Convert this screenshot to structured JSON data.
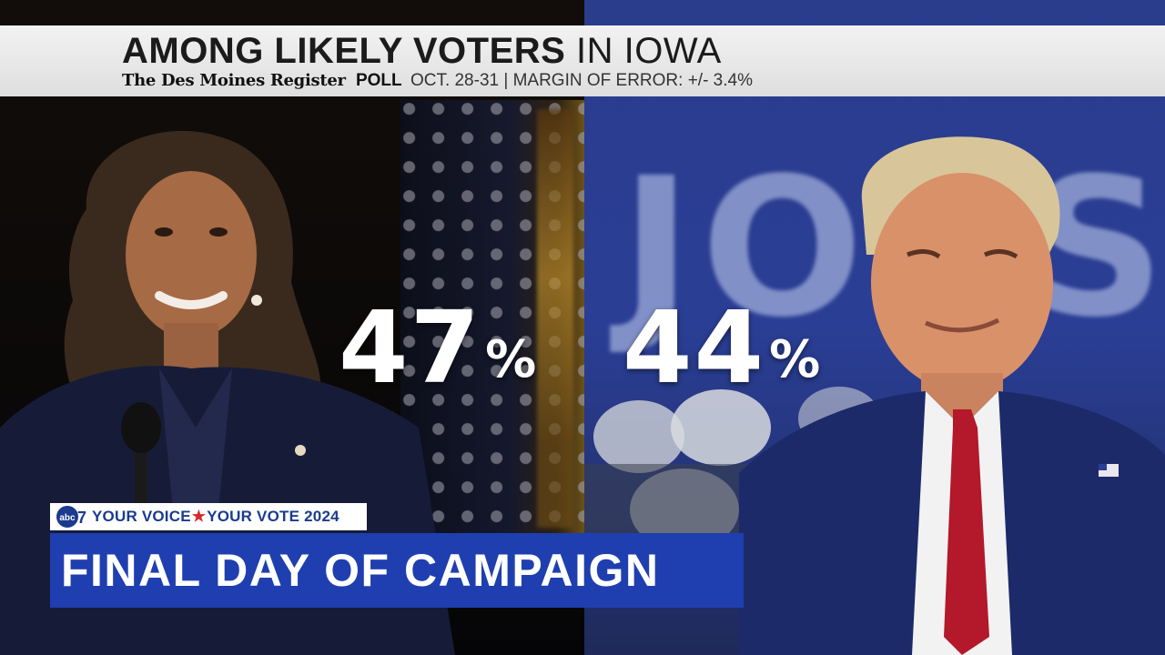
{
  "headline": {
    "bold_text": "AMONG LIKELY VOTERS",
    "light_text": "IN IOWA"
  },
  "subline": {
    "publication": "The Des Moines Register",
    "label": "POLL",
    "details": "OCT. 28-31 | MARGIN OF ERROR: +/- 3.4%"
  },
  "results": {
    "left": {
      "value": "47",
      "sign": "%"
    },
    "right": {
      "value": "44",
      "sign": "%"
    }
  },
  "background_sign_text": "JOBS",
  "brand": {
    "logo_text": "abc7",
    "part1": "YOUR VOICE",
    "separator": "★",
    "part2": "YOUR VOTE",
    "year": "2024"
  },
  "banner": {
    "text": "FINAL DAY OF CAMPAIGN"
  },
  "colors": {
    "banner_blue": "#1f3fb0",
    "brand_blue": "#1a3b8f",
    "accent_red": "#d42a2a",
    "headline_bg": "#e8e8e8",
    "right_bg_blue": "#2a3e95"
  }
}
